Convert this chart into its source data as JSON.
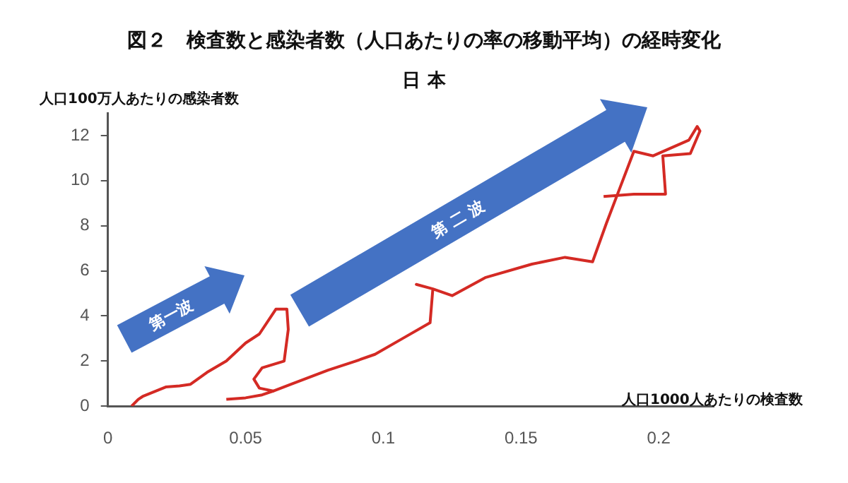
{
  "chart_data": {
    "type": "line",
    "title": "図２　検査数と感染者数（人口あたりの率の移動平均）の経時変化",
    "subtitle": "日 本",
    "xlabel": "人口1000人あたりの検査数",
    "ylabel": "人口100万人あたりの感染者数",
    "annotations": [
      "第一波",
      "第 二 波"
    ],
    "xlim": [
      0,
      0.22
    ],
    "ylim": [
      0,
      13
    ],
    "xticks": [
      0,
      0.05,
      0.1,
      0.15,
      0.2
    ],
    "yticks": [
      0,
      2,
      4,
      6,
      8,
      10,
      12
    ],
    "grid": false,
    "legend": false,
    "marker": "none",
    "line_style": "solid",
    "series": [
      {
        "color": "#d42a24",
        "x": [
          0.0086,
          0.011,
          0.0126,
          0.021,
          0.026,
          0.03,
          0.036,
          0.043,
          0.05,
          0.055,
          0.061,
          0.065,
          0.0655,
          0.064,
          0.056,
          0.053,
          0.055,
          0.06,
          0.056,
          0.05,
          0.043
        ],
        "values": [
          0,
          0.3,
          0.43,
          0.85,
          0.9,
          0.97,
          1.5,
          2.0,
          2.8,
          3.2,
          4.3,
          4.3,
          3.4,
          2.0,
          1.7,
          1.2,
          0.8,
          0.67,
          0.5,
          0.37,
          0.3
        ]
      },
      {
        "color": "#d42a24",
        "x": [
          0.06,
          0.0665,
          0.08,
          0.09,
          0.097,
          0.107,
          0.117,
          0.118,
          0.112,
          0.118,
          0.125,
          0.137,
          0.154,
          0.166,
          0.176,
          0.181,
          0.186,
          0.191,
          0.198,
          0.211,
          0.214,
          0.215,
          0.2115,
          0.2015,
          0.2025,
          0.191,
          0.18
        ],
        "values": [
          0.67,
          0.97,
          1.6,
          2.0,
          2.3,
          3.0,
          3.7,
          5.2,
          5.4,
          5.2,
          4.9,
          5.7,
          6.3,
          6.6,
          6.4,
          8.1,
          9.7,
          11.3,
          11.1,
          11.8,
          12.4,
          12.2,
          11.2,
          11.1,
          9.4,
          9.4,
          9.3
        ]
      }
    ]
  }
}
